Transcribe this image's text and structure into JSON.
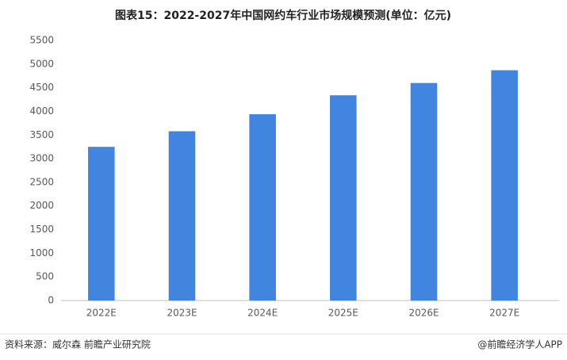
{
  "chart_data": {
    "type": "bar",
    "title": "图表15：2022-2027年中国网约车行业市场规模预测(单位：亿元)",
    "categories": [
      "2022E",
      "2023E",
      "2024E",
      "2025E",
      "2026E",
      "2027E"
    ],
    "values": [
      3250,
      3580,
      3940,
      4340,
      4600,
      4870
    ],
    "color": "#4285e0",
    "ylim": [
      0,
      5500
    ],
    "yticks": [
      0,
      500,
      1000,
      1500,
      2000,
      2500,
      3000,
      3500,
      4000,
      4500,
      5000,
      5500
    ],
    "grid": false,
    "source": "资料来源：威尔森 前瞻产业研究院",
    "credit": "@前瞻经济学人APP"
  }
}
